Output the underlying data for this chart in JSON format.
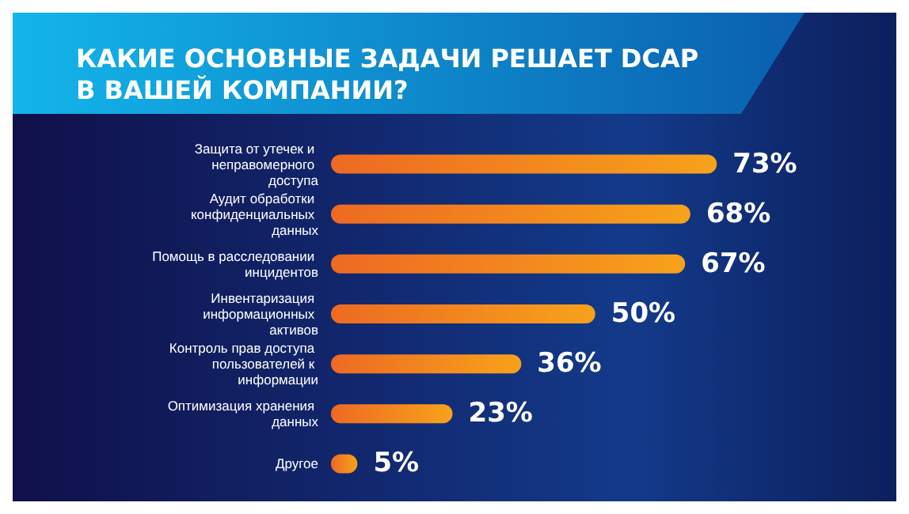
{
  "chart_data": {
    "type": "bar",
    "orientation": "horizontal",
    "title": "КАКИЕ ОСНОВНЫЕ ЗАДАЧИ РЕШАЕТ DCAP\nВ ВАШЕЙ КОМПАНИИ?",
    "categories": [
      "Защита от утечек и неправомерного доступа",
      "Аудит обработки конфиденциальных данных",
      "Помощь в расследовании инцидентов",
      "Инвентаризация информационных активов",
      "Контроль прав доступа пользователей к информации",
      "Оптимизация хранения данных",
      "Другое"
    ],
    "values": [
      73,
      68,
      67,
      50,
      36,
      23,
      5
    ],
    "value_labels": [
      "73%",
      "68%",
      "67%",
      "50%",
      "36%",
      "23%",
      "5%"
    ],
    "color": "#f7a21b",
    "grid": false
  }
}
